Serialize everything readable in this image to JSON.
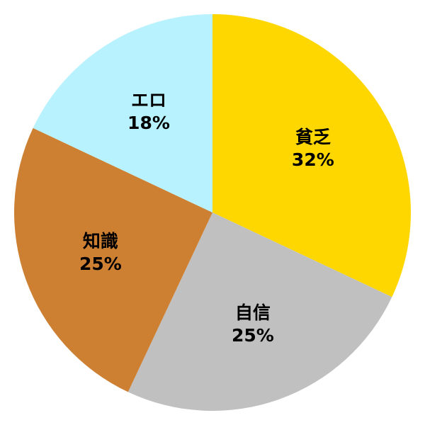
{
  "chart_data": {
    "type": "pie",
    "start": "top",
    "direction": "clockwise",
    "slices": [
      {
        "label": "貧乏",
        "value": 32,
        "value_label": "32%",
        "color": "#FFD700"
      },
      {
        "label": "自信",
        "value": 25,
        "value_label": "25%",
        "color": "#C0C0C0"
      },
      {
        "label": "知識",
        "value": 25,
        "value_label": "25%",
        "color": "#CD7F32"
      },
      {
        "label": "エロ",
        "value": 18,
        "value_label": "18%",
        "color": "#B9F2FF"
      }
    ]
  }
}
